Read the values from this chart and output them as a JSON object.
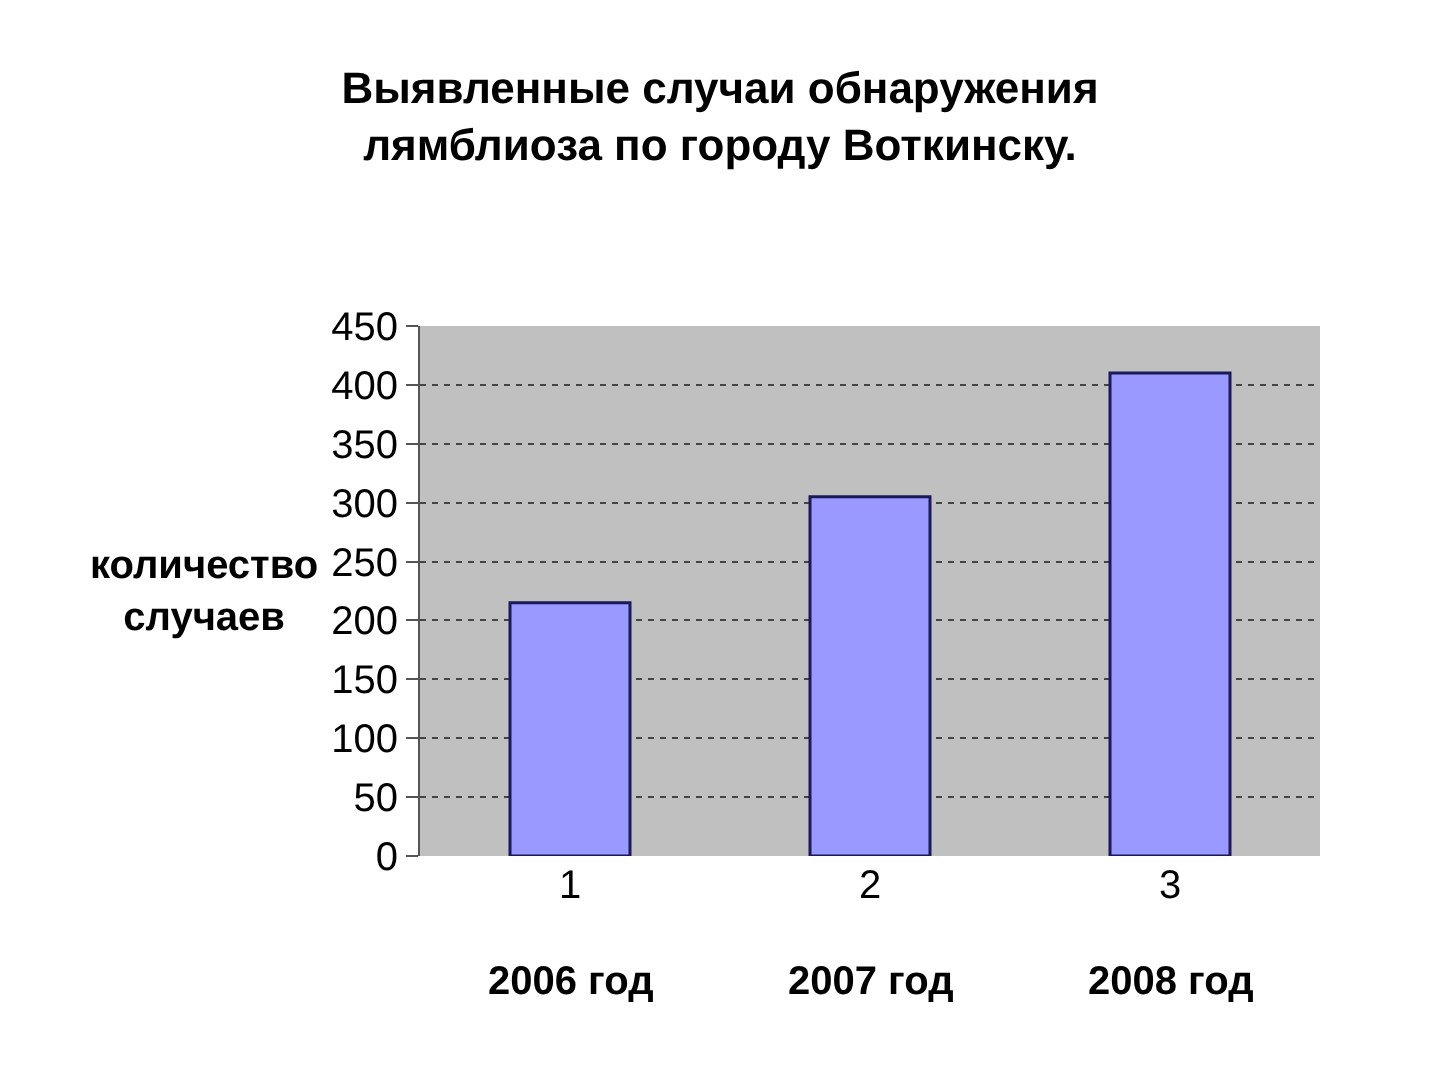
{
  "chart_data": {
    "type": "bar",
    "title": "Выявленные случаи обнаружения лямблиоза по городу Воткинску.",
    "ylabel": "количество случаев",
    "categories": [
      "1",
      "2",
      "3"
    ],
    "values": [
      215,
      305,
      410
    ],
    "color": "#9999ff",
    "ylim": [
      0,
      450
    ],
    "yticks": [
      0,
      50,
      100,
      150,
      200,
      250,
      300,
      350,
      400,
      450
    ],
    "grid": "y",
    "annotations": [
      "2006 год",
      "2007 год",
      "2008 год"
    ]
  }
}
